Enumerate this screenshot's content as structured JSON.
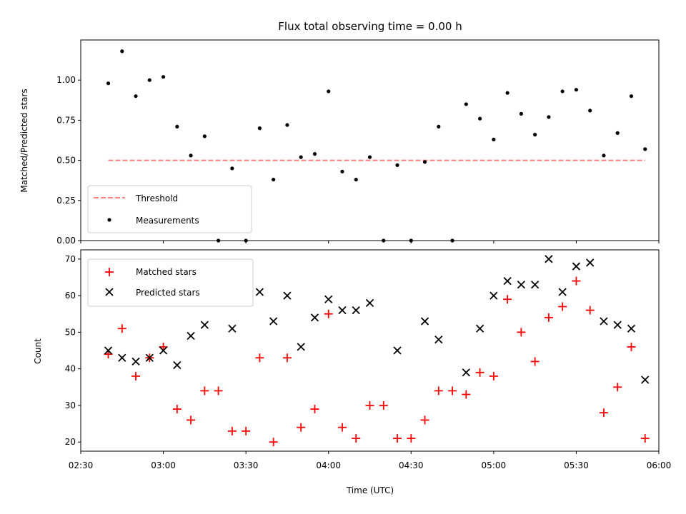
{
  "chart_data": [
    {
      "type": "scatter",
      "title": "Flux total observing time = 0.00 h",
      "xlabel": "",
      "ylabel": "Matched/Predicted stars",
      "xlim": [
        "02:30",
        "06:00"
      ],
      "ylim": [
        0,
        1.25
      ],
      "yticks": [
        "0.00",
        "0.25",
        "0.50",
        "0.75",
        "1.00"
      ],
      "legend_position": "lower-left",
      "grid": false,
      "series": [
        {
          "name": "Threshold",
          "kind": "dashed-line",
          "color": "#ff8080",
          "x": [
            "02:40",
            "05:55"
          ],
          "y": [
            0.5,
            0.5
          ]
        },
        {
          "name": "Measurements",
          "kind": "dot",
          "color": "#000000",
          "x": [
            "02:40",
            "02:45",
            "02:50",
            "02:55",
            "03:00",
            "03:05",
            "03:10",
            "03:15",
            "03:20",
            "03:25",
            "03:30",
            "03:35",
            "03:40",
            "03:45",
            "03:50",
            "03:55",
            "04:00",
            "04:05",
            "04:10",
            "04:15",
            "04:20",
            "04:25",
            "04:30",
            "04:35",
            "04:40",
            "04:45",
            "04:50",
            "04:55",
            "05:00",
            "05:05",
            "05:10",
            "05:15",
            "05:20",
            "05:25",
            "05:30",
            "05:35",
            "05:40",
            "05:45",
            "05:50",
            "05:55"
          ],
          "y": [
            0.98,
            1.18,
            0.9,
            1.0,
            1.02,
            0.71,
            0.53,
            0.65,
            0.0,
            0.45,
            0.0,
            0.7,
            0.38,
            0.72,
            0.52,
            0.54,
            0.93,
            0.43,
            0.38,
            0.52,
            0.0,
            0.47,
            0.0,
            0.49,
            0.71,
            0.0,
            0.85,
            0.76,
            0.63,
            0.92,
            0.79,
            0.66,
            0.77,
            0.93,
            0.94,
            0.81,
            0.53,
            0.67,
            0.9,
            0.57
          ]
        }
      ]
    },
    {
      "type": "scatter",
      "title": "",
      "xlabel": "Time (UTC)",
      "ylabel": "Count",
      "xlim": [
        "02:30",
        "06:00"
      ],
      "xticks": [
        "02:30",
        "03:00",
        "03:30",
        "04:00",
        "04:30",
        "05:00",
        "05:30",
        "06:00"
      ],
      "ylim": [
        17.5,
        72.5
      ],
      "yticks": [
        "20",
        "30",
        "40",
        "50",
        "60",
        "70"
      ],
      "legend_position": "upper-left",
      "grid": false,
      "series": [
        {
          "name": "Matched stars",
          "kind": "plus",
          "color": "#ff0000",
          "x": [
            "02:40",
            "02:45",
            "02:50",
            "02:55",
            "03:00",
            "03:05",
            "03:10",
            "03:15",
            "03:20",
            "03:25",
            "03:30",
            "03:35",
            "03:40",
            "03:45",
            "03:50",
            "03:55",
            "04:00",
            "04:05",
            "04:10",
            "04:15",
            "04:20",
            "04:25",
            "04:30",
            "04:35",
            "04:40",
            "04:45",
            "04:50",
            "04:55",
            "05:00",
            "05:05",
            "05:10",
            "05:15",
            "05:20",
            "05:25",
            "05:30",
            "05:35",
            "05:40",
            "05:45",
            "05:50",
            "05:55"
          ],
          "y": [
            44,
            51,
            38,
            43,
            46,
            29,
            26,
            34,
            34,
            23,
            23,
            43,
            20,
            43,
            24,
            29,
            55,
            24,
            21,
            30,
            30,
            21,
            21,
            26,
            34,
            34,
            33,
            39,
            38,
            59,
            50,
            42,
            54,
            57,
            64,
            56,
            28,
            35,
            46,
            21
          ]
        },
        {
          "name": "Predicted stars",
          "kind": "x",
          "color": "#000000",
          "x": [
            "02:40",
            "02:45",
            "02:50",
            "02:55",
            "03:00",
            "03:05",
            "03:10",
            "03:15",
            "03:25",
            "03:35",
            "03:40",
            "03:45",
            "03:50",
            "03:55",
            "04:00",
            "04:05",
            "04:10",
            "04:15",
            "04:25",
            "04:35",
            "04:40",
            "04:50",
            "04:55",
            "05:00",
            "05:05",
            "05:10",
            "05:15",
            "05:20",
            "05:25",
            "05:30",
            "05:35",
            "05:40",
            "05:45",
            "05:50",
            "05:55"
          ],
          "y": [
            45,
            43,
            42,
            43,
            45,
            41,
            49,
            52,
            51,
            61,
            53,
            60,
            46,
            54,
            59,
            56,
            56,
            58,
            45,
            53,
            48,
            39,
            51,
            60,
            64,
            63,
            63,
            70,
            61,
            68,
            69,
            53,
            52,
            51,
            37
          ]
        }
      ]
    }
  ]
}
